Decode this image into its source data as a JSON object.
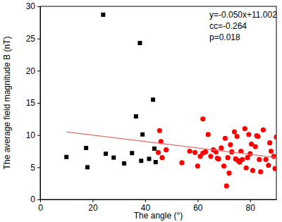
{
  "chart_data": {
    "type": "scatter",
    "x_label": "The angle (°)",
    "y_label": "The average field magnitude B (nT)",
    "annotations": [
      "y=-0.050x+11.002",
      "cc=-0.264",
      "p=0.018"
    ],
    "xlim": [
      0,
      90
    ],
    "ylim": [
      0,
      30
    ],
    "xticks": [
      0,
      20,
      40,
      60,
      80
    ],
    "yticks": [
      0,
      5,
      10,
      15,
      20,
      25,
      30
    ],
    "series": [
      {
        "type": "scatter",
        "marker": "square",
        "color": "#000000",
        "x": [
          10,
          17.5,
          18,
          24,
          25,
          28,
          32,
          35,
          36.5,
          38,
          38.5,
          39,
          41.5,
          43,
          43.5,
          44
        ],
        "values": [
          6.6,
          8.0,
          5.0,
          28.7,
          7.1,
          6.5,
          5.6,
          7.2,
          12.9,
          24.3,
          6.0,
          10.1,
          6.3,
          15.5,
          7.9,
          5.8
        ]
      },
      {
        "type": "scatter",
        "marker": "circle",
        "color": "#ff0000",
        "x": [
          45,
          45.5,
          46,
          46.5,
          48,
          54,
          57,
          59,
          60,
          61,
          62,
          62,
          63,
          64,
          65,
          66,
          67,
          67.5,
          68,
          69,
          70,
          70.5,
          71,
          71.5,
          72,
          72.5,
          73,
          74,
          74.5,
          75,
          75.5,
          76,
          76.5,
          77,
          78,
          78.5,
          79,
          79.5,
          80,
          80.5,
          81,
          82,
          82.5,
          83,
          83.5,
          84,
          85,
          86,
          87,
          87.5,
          88,
          89,
          89.5,
          90
        ],
        "values": [
          7.3,
          10.7,
          9.0,
          6.5,
          7.7,
          5.7,
          7.5,
          7.3,
          5.2,
          6.7,
          7.2,
          12.5,
          7.4,
          10.1,
          6.7,
          7.7,
          7.4,
          6.4,
          6.3,
          8.0,
          5.2,
          9.5,
          2.1,
          6.5,
          4.1,
          8.5,
          7.4,
          10.5,
          6.3,
          9.8,
          6.0,
          5.8,
          7.5,
          6.2,
          11.0,
          4.9,
          6.5,
          10.1,
          7.1,
          8.6,
          4.5,
          8.2,
          9.9,
          9.8,
          6.2,
          4.3,
          10.8,
          6.2,
          5.3,
          8.8,
          7.5,
          6.7,
          4.8,
          9.7
        ]
      },
      {
        "type": "line",
        "line_style": "solid",
        "color": "#e36c6c",
        "x": [
          10,
          90
        ],
        "values": [
          10.5,
          6.5
        ]
      }
    ]
  }
}
